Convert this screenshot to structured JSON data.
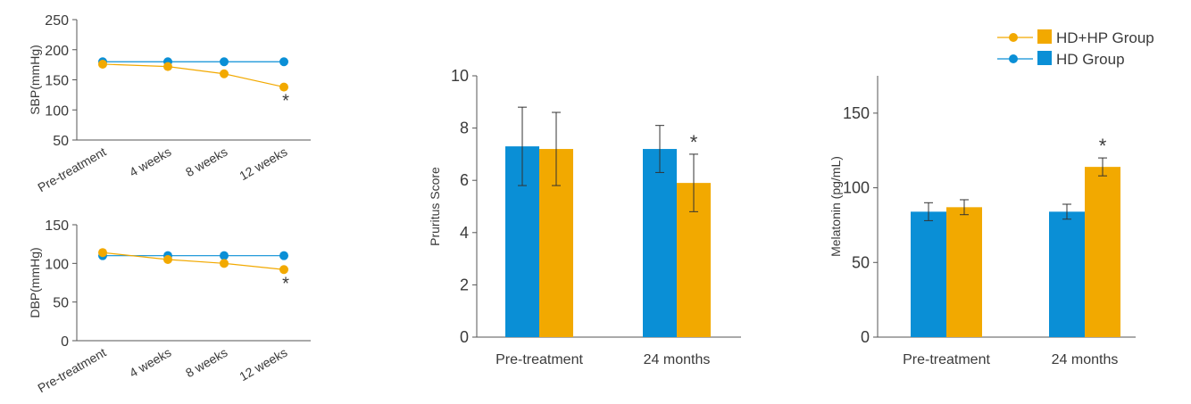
{
  "colors": {
    "hd_hp": "#f2a900",
    "hd": "#0a8fd6",
    "axis": "#555555"
  },
  "legend": {
    "position": "top-right",
    "items": [
      {
        "label": "HD+HP Group",
        "color": "#f2a900"
      },
      {
        "label": "HD Group",
        "color": "#0a8fd6"
      }
    ]
  },
  "chart_data": [
    {
      "type": "line",
      "ylabel": "SBP(mmHg)",
      "xlabel": "",
      "categories": [
        "Pre-treatment",
        "4 weeks",
        "8 weeks",
        "12 weeks"
      ],
      "ylim": [
        50,
        250
      ],
      "yticks": [
        50,
        100,
        150,
        200,
        250
      ],
      "series": [
        {
          "group": "hd",
          "values": [
            180,
            180,
            180,
            180
          ]
        },
        {
          "group": "hd_hp",
          "values": [
            176,
            172,
            160,
            138
          ]
        }
      ],
      "annotations": [
        {
          "text": "*",
          "category": "12 weeks"
        }
      ]
    },
    {
      "type": "line",
      "ylabel": "DBP(mmHg)",
      "xlabel": "",
      "categories": [
        "Pre-treatment",
        "4 weeks",
        "8 weeks",
        "12 weeks"
      ],
      "ylim": [
        0,
        150
      ],
      "yticks": [
        0,
        50,
        100,
        150
      ],
      "series": [
        {
          "group": "hd",
          "values": [
            110,
            110,
            110,
            110
          ]
        },
        {
          "group": "hd_hp",
          "values": [
            114,
            105,
            100,
            92
          ]
        }
      ],
      "annotations": [
        {
          "text": "*",
          "category": "12 weeks"
        }
      ]
    },
    {
      "type": "bar",
      "ylabel": "Pruritus Score",
      "xlabel": "",
      "categories": [
        "Pre-treatment",
        "24 months"
      ],
      "ylim": [
        0,
        10
      ],
      "yticks": [
        0,
        2,
        4,
        6,
        8,
        10
      ],
      "series": [
        {
          "group": "hd",
          "values": [
            7.3,
            7.2
          ],
          "errors": [
            1.5,
            0.9
          ]
        },
        {
          "group": "hd_hp",
          "values": [
            7.2,
            5.9
          ],
          "errors": [
            1.4,
            1.1
          ]
        }
      ],
      "annotations": [
        {
          "text": "*",
          "category": "24 months",
          "group": "hd_hp"
        }
      ]
    },
    {
      "type": "bar",
      "ylabel": "Melatonin (pg/mL)",
      "xlabel": "",
      "categories": [
        "Pre-treatment",
        "24 months"
      ],
      "ylim": [
        0,
        175
      ],
      "yticks": [
        0,
        50,
        100,
        150
      ],
      "series": [
        {
          "group": "hd",
          "values": [
            84,
            84
          ],
          "errors": [
            6,
            5
          ]
        },
        {
          "group": "hd_hp",
          "values": [
            87,
            114
          ],
          "errors": [
            5,
            6
          ]
        }
      ],
      "annotations": [
        {
          "text": "*",
          "category": "24 months",
          "group": "hd_hp"
        }
      ]
    }
  ]
}
